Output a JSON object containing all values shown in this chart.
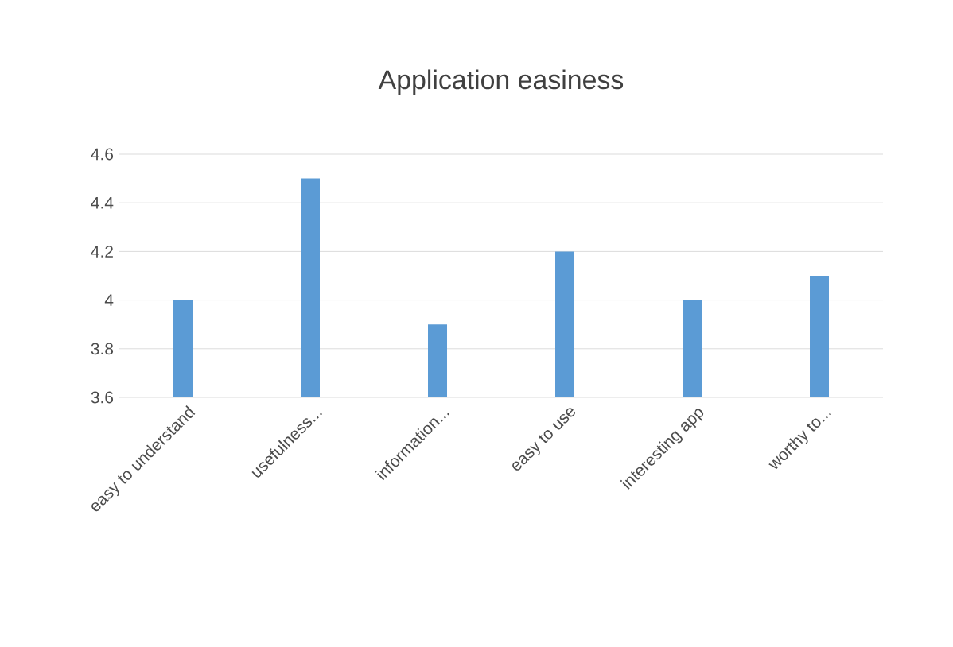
{
  "chart_data": {
    "type": "bar",
    "title": "Application easiness",
    "categories": [
      "easy to understand",
      "usefulness...",
      "information...",
      "easy to use",
      "interesting app",
      "worthy to..."
    ],
    "values": [
      4.0,
      4.5,
      3.9,
      4.2,
      4.0,
      4.1
    ],
    "color": "#5b9bd5",
    "ylim": [
      3.6,
      4.6
    ],
    "yticks": [
      3.6,
      3.8,
      4,
      4.2,
      4.4,
      4.6
    ],
    "grid": "y"
  }
}
